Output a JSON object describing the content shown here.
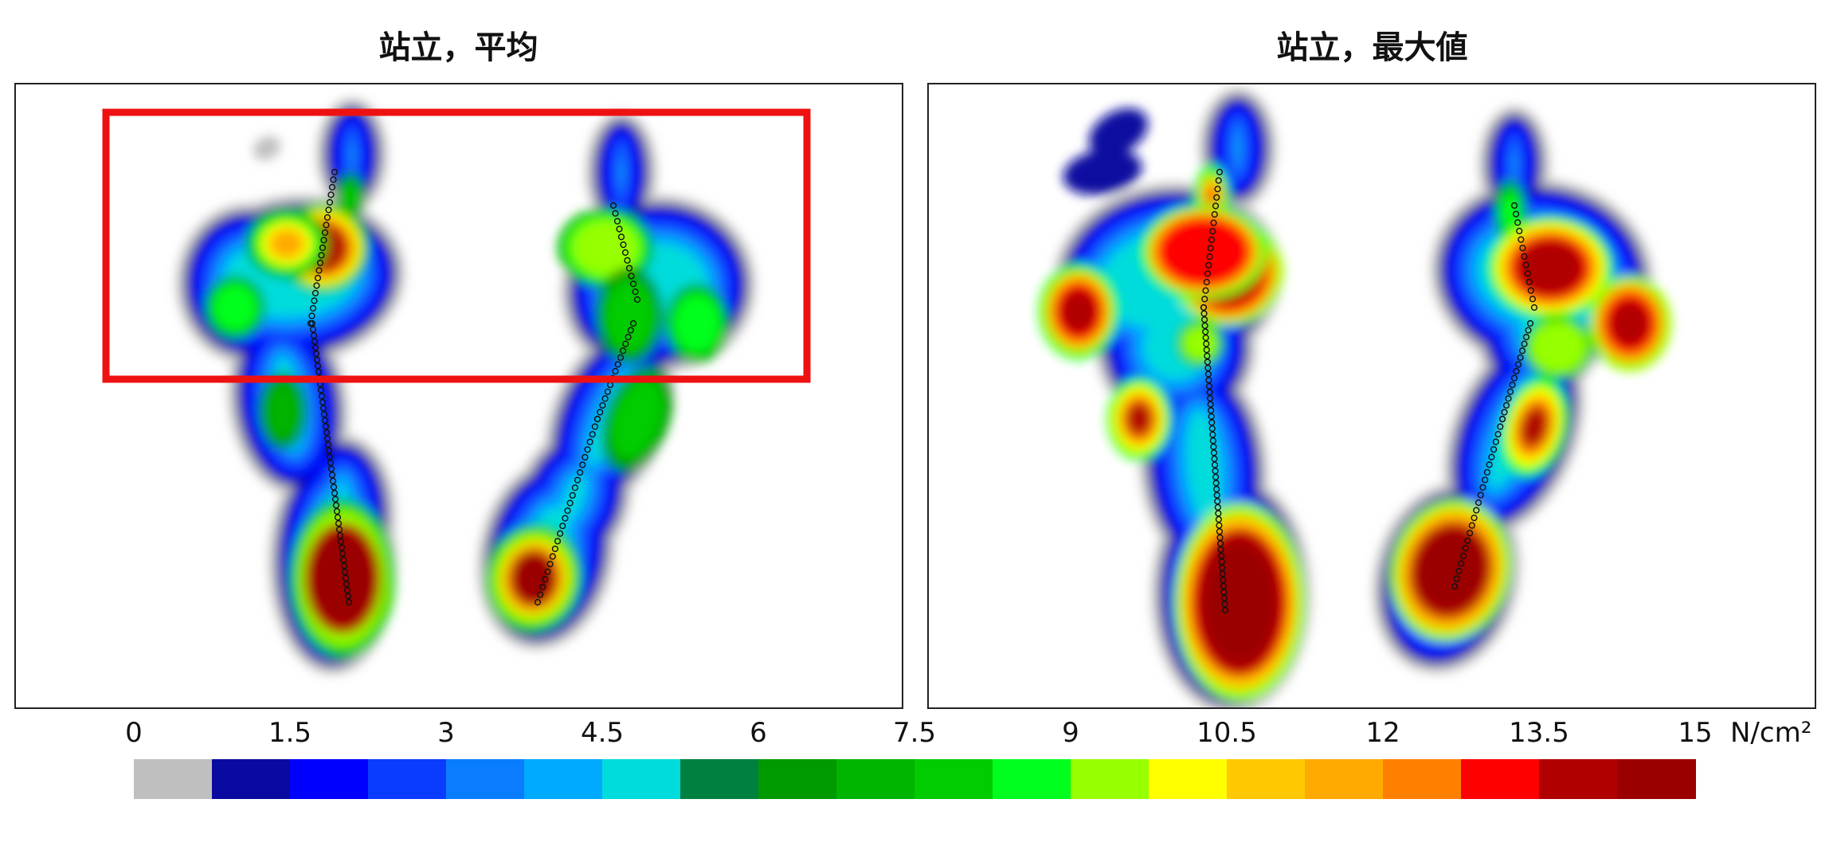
{
  "panels": [
    {
      "title": "站立，平均",
      "highlight": true
    },
    {
      "title": "站立，最大値",
      "highlight": false
    }
  ],
  "colorbar": {
    "ticks": [
      "0",
      "1.5",
      "3",
      "4.5",
      "6",
      "7.5",
      "9",
      "10.5",
      "12",
      "13.5",
      "15"
    ],
    "unit": "N/cm²",
    "colors": [
      "#bfbfbf",
      "#0a0aa0",
      "#0000ff",
      "#0a3cff",
      "#0a7dff",
      "#00aaff",
      "#00dcdc",
      "#008040",
      "#009a00",
      "#00b400",
      "#00cc00",
      "#00ff1e",
      "#96ff00",
      "#ffff00",
      "#ffc800",
      "#ffaa00",
      "#ff8000",
      "#ff0000",
      "#b00000",
      "#9a0000"
    ]
  },
  "chart_data": {
    "type": "heatmap",
    "title": "",
    "scale_min": 0,
    "scale_max": 15,
    "scale_unit": "N/cm²",
    "panels": [
      "站立，平均",
      "站立，最大値"
    ]
  }
}
